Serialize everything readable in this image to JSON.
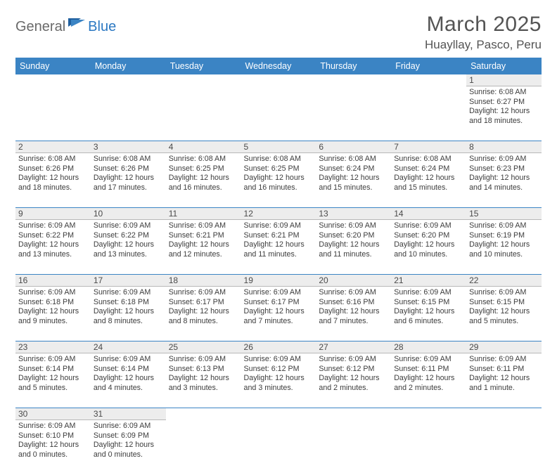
{
  "logo": {
    "text1": "General",
    "text2": "Blue"
  },
  "title": "March 2025",
  "location": "Huayllay, Pasco, Peru",
  "colors": {
    "header_bg": "#3b84c4",
    "header_text": "#ffffff",
    "rule": "#3b84c4",
    "daynum_bg": "#ededed",
    "body_text": "#3c3c3c",
    "title_text": "#545454"
  },
  "weekdays": [
    "Sunday",
    "Monday",
    "Tuesday",
    "Wednesday",
    "Thursday",
    "Friday",
    "Saturday"
  ],
  "weeks": [
    [
      null,
      null,
      null,
      null,
      null,
      null,
      {
        "n": "1",
        "sr": "6:08 AM",
        "ss": "6:27 PM",
        "dl": "12 hours and 18 minutes."
      }
    ],
    [
      {
        "n": "2",
        "sr": "6:08 AM",
        "ss": "6:26 PM",
        "dl": "12 hours and 18 minutes."
      },
      {
        "n": "3",
        "sr": "6:08 AM",
        "ss": "6:26 PM",
        "dl": "12 hours and 17 minutes."
      },
      {
        "n": "4",
        "sr": "6:08 AM",
        "ss": "6:25 PM",
        "dl": "12 hours and 16 minutes."
      },
      {
        "n": "5",
        "sr": "6:08 AM",
        "ss": "6:25 PM",
        "dl": "12 hours and 16 minutes."
      },
      {
        "n": "6",
        "sr": "6:08 AM",
        "ss": "6:24 PM",
        "dl": "12 hours and 15 minutes."
      },
      {
        "n": "7",
        "sr": "6:08 AM",
        "ss": "6:24 PM",
        "dl": "12 hours and 15 minutes."
      },
      {
        "n": "8",
        "sr": "6:09 AM",
        "ss": "6:23 PM",
        "dl": "12 hours and 14 minutes."
      }
    ],
    [
      {
        "n": "9",
        "sr": "6:09 AM",
        "ss": "6:22 PM",
        "dl": "12 hours and 13 minutes."
      },
      {
        "n": "10",
        "sr": "6:09 AM",
        "ss": "6:22 PM",
        "dl": "12 hours and 13 minutes."
      },
      {
        "n": "11",
        "sr": "6:09 AM",
        "ss": "6:21 PM",
        "dl": "12 hours and 12 minutes."
      },
      {
        "n": "12",
        "sr": "6:09 AM",
        "ss": "6:21 PM",
        "dl": "12 hours and 11 minutes."
      },
      {
        "n": "13",
        "sr": "6:09 AM",
        "ss": "6:20 PM",
        "dl": "12 hours and 11 minutes."
      },
      {
        "n": "14",
        "sr": "6:09 AM",
        "ss": "6:20 PM",
        "dl": "12 hours and 10 minutes."
      },
      {
        "n": "15",
        "sr": "6:09 AM",
        "ss": "6:19 PM",
        "dl": "12 hours and 10 minutes."
      }
    ],
    [
      {
        "n": "16",
        "sr": "6:09 AM",
        "ss": "6:18 PM",
        "dl": "12 hours and 9 minutes."
      },
      {
        "n": "17",
        "sr": "6:09 AM",
        "ss": "6:18 PM",
        "dl": "12 hours and 8 minutes."
      },
      {
        "n": "18",
        "sr": "6:09 AM",
        "ss": "6:17 PM",
        "dl": "12 hours and 8 minutes."
      },
      {
        "n": "19",
        "sr": "6:09 AM",
        "ss": "6:17 PM",
        "dl": "12 hours and 7 minutes."
      },
      {
        "n": "20",
        "sr": "6:09 AM",
        "ss": "6:16 PM",
        "dl": "12 hours and 7 minutes."
      },
      {
        "n": "21",
        "sr": "6:09 AM",
        "ss": "6:15 PM",
        "dl": "12 hours and 6 minutes."
      },
      {
        "n": "22",
        "sr": "6:09 AM",
        "ss": "6:15 PM",
        "dl": "12 hours and 5 minutes."
      }
    ],
    [
      {
        "n": "23",
        "sr": "6:09 AM",
        "ss": "6:14 PM",
        "dl": "12 hours and 5 minutes."
      },
      {
        "n": "24",
        "sr": "6:09 AM",
        "ss": "6:14 PM",
        "dl": "12 hours and 4 minutes."
      },
      {
        "n": "25",
        "sr": "6:09 AM",
        "ss": "6:13 PM",
        "dl": "12 hours and 3 minutes."
      },
      {
        "n": "26",
        "sr": "6:09 AM",
        "ss": "6:12 PM",
        "dl": "12 hours and 3 minutes."
      },
      {
        "n": "27",
        "sr": "6:09 AM",
        "ss": "6:12 PM",
        "dl": "12 hours and 2 minutes."
      },
      {
        "n": "28",
        "sr": "6:09 AM",
        "ss": "6:11 PM",
        "dl": "12 hours and 2 minutes."
      },
      {
        "n": "29",
        "sr": "6:09 AM",
        "ss": "6:11 PM",
        "dl": "12 hours and 1 minute."
      }
    ],
    [
      {
        "n": "30",
        "sr": "6:09 AM",
        "ss": "6:10 PM",
        "dl": "12 hours and 0 minutes."
      },
      {
        "n": "31",
        "sr": "6:09 AM",
        "ss": "6:09 PM",
        "dl": "12 hours and 0 minutes."
      },
      null,
      null,
      null,
      null,
      null
    ]
  ],
  "labels": {
    "sunrise": "Sunrise: ",
    "sunset": "Sunset: ",
    "daylight": "Daylight: "
  }
}
